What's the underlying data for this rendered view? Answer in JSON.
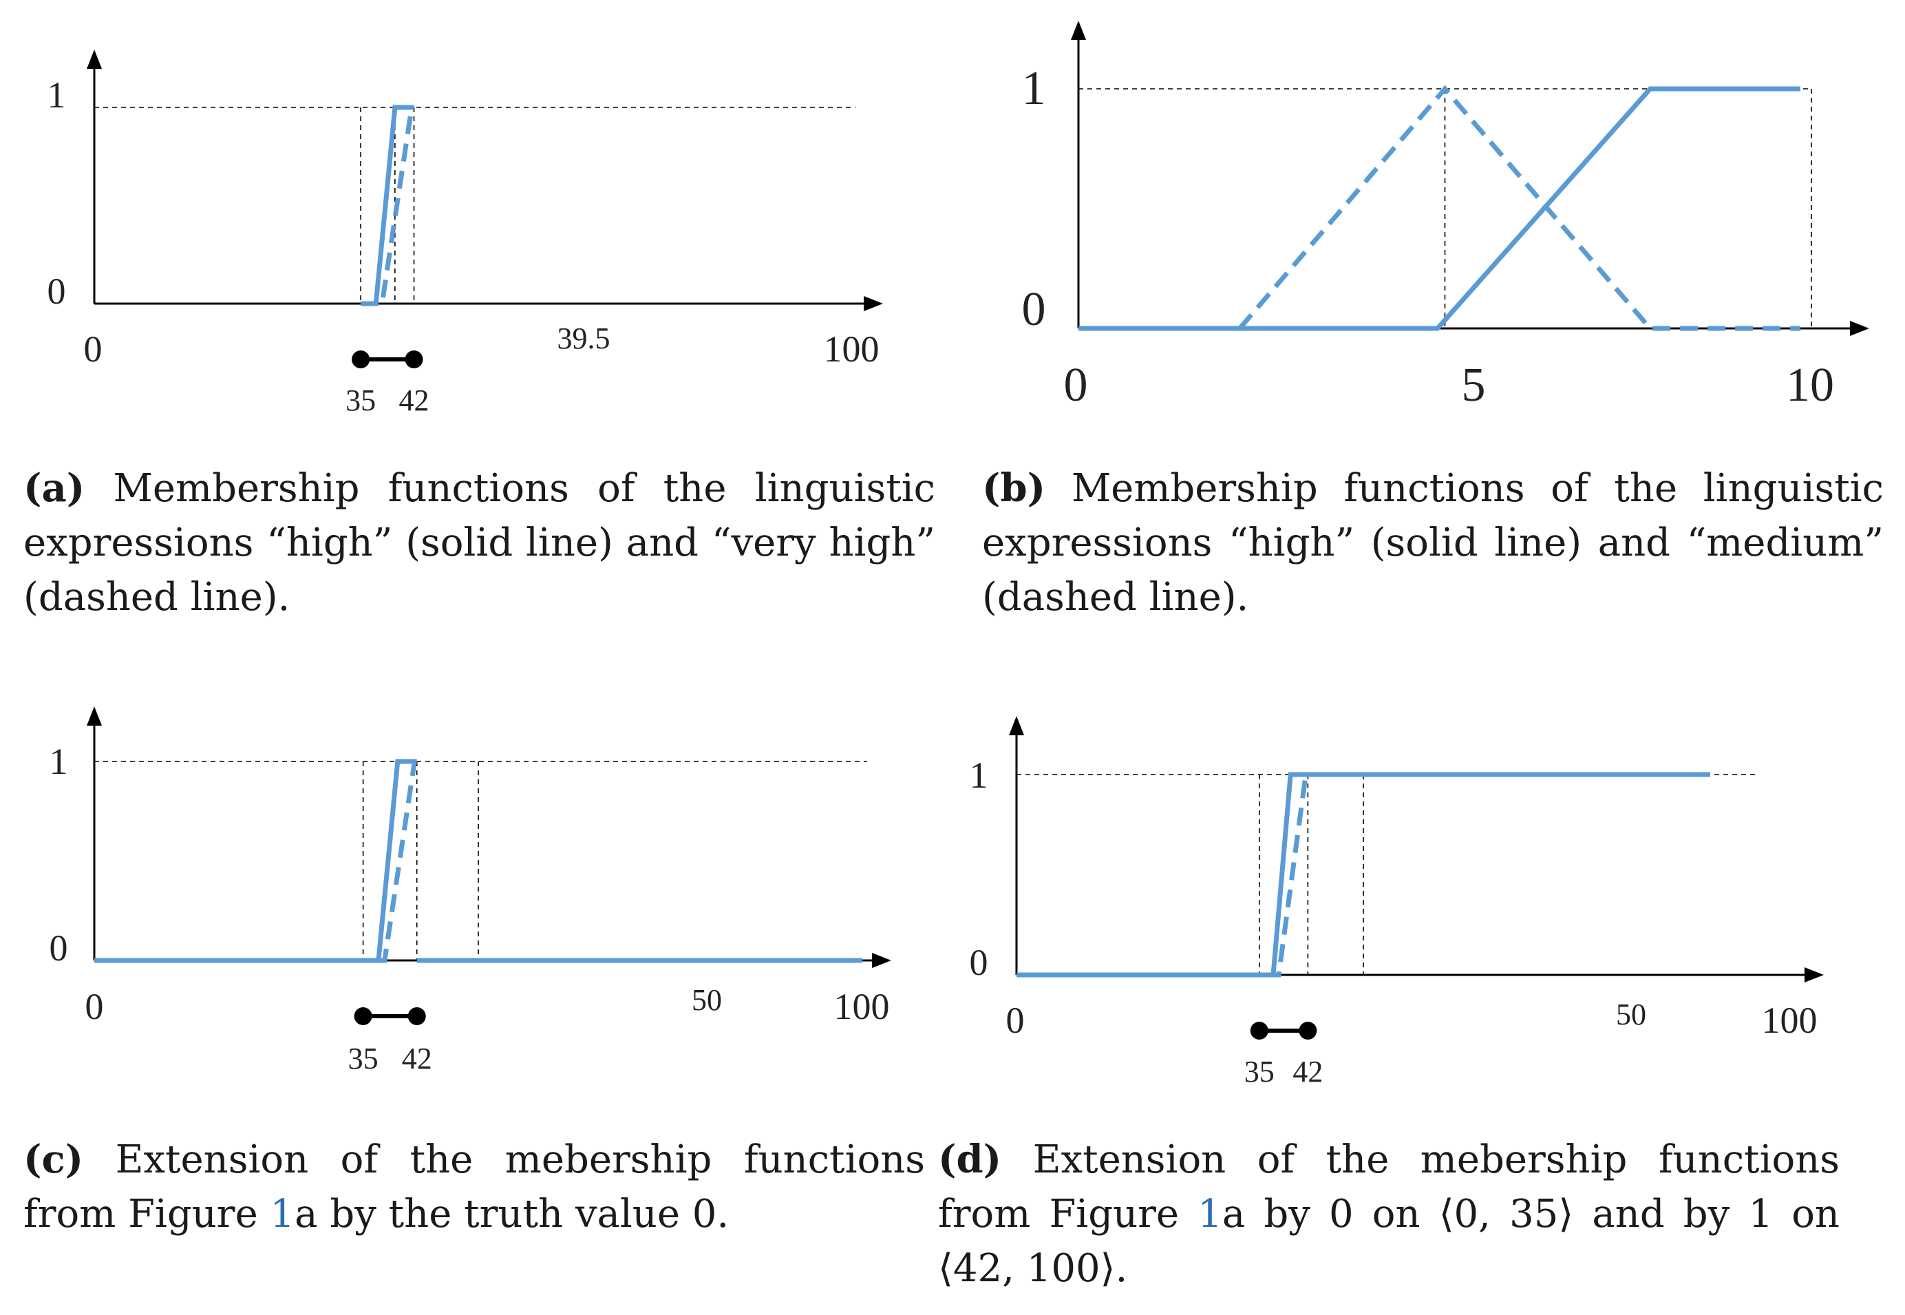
{
  "chart_data": [
    {
      "panel": "a",
      "type": "line",
      "xlim": [
        0,
        100
      ],
      "ylim": [
        0,
        1
      ],
      "x_tick_labels": [
        "0",
        "39.5",
        "100"
      ],
      "y_tick_labels": [
        "0",
        "1"
      ],
      "interval": {
        "start": 35,
        "end": 42,
        "start_label": "35",
        "end_label": "42"
      },
      "guides_x": [
        35,
        39.5,
        42
      ],
      "series": [
        {
          "style": "solid",
          "points": [
            [
              35,
              0
            ],
            [
              37,
              0
            ],
            [
              39.5,
              1
            ],
            [
              42,
              1
            ]
          ]
        },
        {
          "style": "dashed",
          "points": [
            [
              35,
              0
            ],
            [
              37.8,
              0
            ],
            [
              41.7,
              1
            ]
          ]
        }
      ]
    },
    {
      "panel": "b",
      "type": "line",
      "xlim": [
        0,
        10
      ],
      "ylim": [
        0,
        1
      ],
      "x_tick_labels": [
        "0",
        "5",
        "10"
      ],
      "y_tick_labels": [
        "0",
        "1"
      ],
      "guides_x": [
        5,
        10
      ],
      "series": [
        {
          "style": "solid",
          "points": [
            [
              0,
              0
            ],
            [
              4.9,
              0
            ],
            [
              7.8,
              1
            ],
            [
              9.85,
              1
            ]
          ]
        },
        {
          "style": "dashed",
          "points": [
            [
              2.2,
              0
            ],
            [
              5,
              1
            ],
            [
              7.8,
              0
            ],
            [
              9.85,
              0
            ]
          ]
        }
      ]
    },
    {
      "panel": "c",
      "type": "line",
      "xlim": [
        0,
        100
      ],
      "ylim": [
        0,
        1
      ],
      "x_tick_labels": [
        "0",
        "50",
        "100"
      ],
      "y_tick_labels": [
        "0",
        "1"
      ],
      "interval": {
        "start": 35,
        "end": 42,
        "start_label": "35",
        "end_label": "42"
      },
      "guides_x": [
        35,
        42,
        50
      ],
      "series": [
        {
          "style": "solid",
          "points": [
            [
              0,
              0
            ],
            [
              37,
              0
            ],
            [
              39.5,
              1
            ],
            [
              42,
              1
            ]
          ]
        },
        {
          "style": "solid",
          "points": [
            [
              42,
              0
            ],
            [
              100,
              0
            ]
          ]
        },
        {
          "style": "dashed",
          "points": [
            [
              37,
              0
            ],
            [
              37.8,
              0
            ],
            [
              41.7,
              1
            ]
          ]
        }
      ]
    },
    {
      "panel": "d",
      "type": "line",
      "xlim": [
        0,
        100
      ],
      "ylim": [
        0,
        1
      ],
      "x_tick_labels": [
        "0",
        "50",
        "100"
      ],
      "y_tick_labels": [
        "0",
        "1"
      ],
      "interval": {
        "start": 35,
        "end": 42,
        "start_label": "35",
        "end_label": "42"
      },
      "guides_x": [
        35,
        42,
        50
      ],
      "series": [
        {
          "style": "solid",
          "points": [
            [
              0,
              0
            ],
            [
              37,
              0
            ],
            [
              39.5,
              1
            ],
            [
              100,
              1
            ]
          ]
        },
        {
          "style": "dashed",
          "points": [
            [
              0,
              0
            ],
            [
              37.8,
              0
            ],
            [
              41.7,
              1
            ]
          ]
        }
      ]
    }
  ],
  "captions": {
    "a": {
      "tag": "(a)",
      "text": " Membership functions of the linguistic expressions “high” (solid line) and “very high” (dashed line)."
    },
    "b": {
      "tag": "(b)",
      "text": " Membership functions of the linguistic expressions “high” (solid line) and “medium” (dashed line)."
    },
    "c": {
      "tag": "(c)",
      "text_before": " Extension of the mebership functions from Figure ",
      "ref": "1",
      "text_after": "a by the truth value 0."
    },
    "d": {
      "tag": "(d)",
      "text_before": " Extension of the mebership functions from Figure ",
      "ref": "1",
      "text_after": "a by 0 on ⟨0, 35⟩ and by 1 on ⟨42, 100⟩."
    }
  }
}
